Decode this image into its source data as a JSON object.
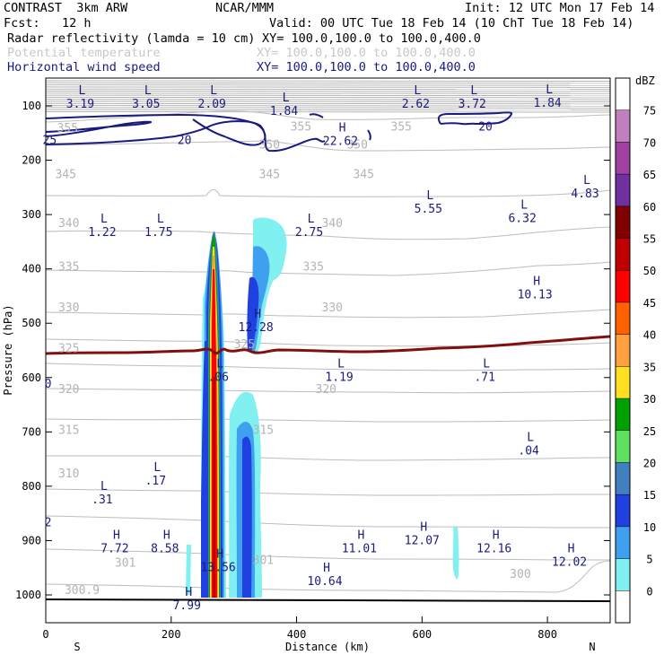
{
  "header": {
    "model": "CONTRAST  3km ARW",
    "center": "NCAR/MMM",
    "init": "Init: 12 UTC Mon 17 Feb 14",
    "fcst": "Fcst:   12 h",
    "valid": "Valid: 00 UTC Tue 18 Feb 14 (10 ChT Tue 18 Feb 14)",
    "fields": [
      {
        "label": "Radar reflectivity (lamda = 10 cm)",
        "xy": "XY= 100.0,100.0 to 100.0,400.0",
        "color": "#000000"
      },
      {
        "label": "Potential temperature",
        "xy": "XY= 100.0,100.0 to 100.0,400.0",
        "color": "#c8c8c8"
      },
      {
        "label": "Horizontal wind speed",
        "xy": "XY= 100.0,100.0 to 100.0,400.0",
        "color": "#1a1a80"
      }
    ]
  },
  "chart_data": {
    "type": "cross-section",
    "xlabel": "Distance (km)",
    "ylabel": "Pressure (hPa)",
    "x_ticks": [
      0,
      200,
      400,
      600,
      800
    ],
    "y_ticks": [
      100,
      200,
      300,
      400,
      500,
      600,
      700,
      800,
      900,
      1000
    ],
    "xlim": [
      0,
      900
    ],
    "ylim": [
      1045,
      50
    ],
    "left_end": "S",
    "right_end": "N",
    "colorbar": {
      "unit": "dBZ",
      "labels": [
        75,
        70,
        65,
        60,
        55,
        50,
        45,
        40,
        35,
        30,
        25,
        20,
        15,
        10,
        5,
        0
      ],
      "colors": [
        "#ffffff",
        "#c080c0",
        "#a040a0",
        "#7030a0",
        "#800000",
        "#c00000",
        "#ff0000",
        "#ff6000",
        "#ffa040",
        "#ffe020",
        "#00a000",
        "#60e060",
        "#4080c0",
        "#2040e0",
        "#40a0f0",
        "#80f0f0",
        "#ffffff"
      ]
    },
    "theta_labels": [
      {
        "x": 18,
        "p": 140,
        "text": "355"
      },
      {
        "x": 390,
        "p": 137,
        "text": "355"
      },
      {
        "x": 550,
        "p": 137,
        "text": "355"
      },
      {
        "x": 340,
        "p": 170,
        "text": "350"
      },
      {
        "x": 480,
        "p": 170,
        "text": "350"
      },
      {
        "x": 15,
        "p": 225,
        "text": "345"
      },
      {
        "x": 340,
        "p": 225,
        "text": "345"
      },
      {
        "x": 490,
        "p": 225,
        "text": "345"
      },
      {
        "x": 20,
        "p": 315,
        "text": "340"
      },
      {
        "x": 440,
        "p": 315,
        "text": "340"
      },
      {
        "x": 20,
        "p": 395,
        "text": "335"
      },
      {
        "x": 410,
        "p": 395,
        "text": "335"
      },
      {
        "x": 20,
        "p": 470,
        "text": "330"
      },
      {
        "x": 440,
        "p": 470,
        "text": "330"
      },
      {
        "x": 20,
        "p": 545,
        "text": "325"
      },
      {
        "x": 300,
        "p": 538,
        "text": "325"
      },
      {
        "x": 20,
        "p": 620,
        "text": "320"
      },
      {
        "x": 430,
        "p": 620,
        "text": "320"
      },
      {
        "x": 20,
        "p": 695,
        "text": "315"
      },
      {
        "x": 330,
        "p": 695,
        "text": "315"
      },
      {
        "x": 20,
        "p": 775,
        "text": "310"
      },
      {
        "x": 110,
        "p": 940,
        "text": "301"
      },
      {
        "x": 330,
        "p": 935,
        "text": "301"
      },
      {
        "x": 30,
        "p": 990,
        "text": "300.9"
      },
      {
        "x": 740,
        "p": 960,
        "text": "300"
      }
    ],
    "wind_labels": [
      {
        "x": -5,
        "p": 162,
        "text": "25"
      },
      {
        "x": 210,
        "p": 162,
        "text": "20"
      },
      {
        "x": 690,
        "p": 137,
        "text": "20"
      },
      {
        "x": -2,
        "p": 610,
        "text": "0"
      },
      {
        "x": -2,
        "p": 865,
        "text": "2"
      }
    ],
    "extrema": [
      {
        "x": 55,
        "p": 82,
        "type": "L",
        "value": "3.19"
      },
      {
        "x": 160,
        "p": 82,
        "type": "L",
        "value": "3.05"
      },
      {
        "x": 265,
        "p": 82,
        "type": "L",
        "value": "2.09"
      },
      {
        "x": 380,
        "p": 95,
        "type": "L",
        "value": "1.84"
      },
      {
        "x": 590,
        "p": 82,
        "type": "L",
        "value": "2.62"
      },
      {
        "x": 680,
        "p": 82,
        "type": "L",
        "value": "3.72"
      },
      {
        "x": 800,
        "p": 80,
        "type": "L",
        "value": "1.84"
      },
      {
        "x": 470,
        "p": 150,
        "type": "H",
        "value": "22.62"
      },
      {
        "x": 860,
        "p": 247,
        "type": "L",
        "value": "4.83"
      },
      {
        "x": 610,
        "p": 275,
        "type": "L",
        "value": "5.55"
      },
      {
        "x": 760,
        "p": 292,
        "type": "L",
        "value": "6.32"
      },
      {
        "x": 90,
        "p": 318,
        "type": "L",
        "value": "1.22"
      },
      {
        "x": 180,
        "p": 318,
        "type": "L",
        "value": "1.75"
      },
      {
        "x": 420,
        "p": 318,
        "type": "L",
        "value": "2.75"
      },
      {
        "x": 780,
        "p": 433,
        "type": "H",
        "value": "10.13"
      },
      {
        "x": 335,
        "p": 493,
        "type": "H",
        "value": "12.28"
      },
      {
        "x": 275,
        "p": 585,
        "type": "L",
        "value": ".06"
      },
      {
        "x": 468,
        "p": 585,
        "type": "L",
        "value": "1.19"
      },
      {
        "x": 700,
        "p": 585,
        "type": "L",
        "value": ".71"
      },
      {
        "x": 770,
        "p": 720,
        "type": "L",
        "value": ".04"
      },
      {
        "x": 175,
        "p": 775,
        "type": "L",
        "value": ".17"
      },
      {
        "x": 90,
        "p": 810,
        "type": "L",
        "value": ".31"
      },
      {
        "x": 600,
        "p": 885,
        "type": "H",
        "value": "12.07"
      },
      {
        "x": 500,
        "p": 900,
        "type": "H",
        "value": "11.01"
      },
      {
        "x": 715,
        "p": 900,
        "type": "H",
        "value": "12.16"
      },
      {
        "x": 110,
        "p": 900,
        "type": "H",
        "value": "7.72"
      },
      {
        "x": 190,
        "p": 900,
        "type": "H",
        "value": "8.58"
      },
      {
        "x": 835,
        "p": 925,
        "type": "H",
        "value": "12.02"
      },
      {
        "x": 275,
        "p": 935,
        "type": "H",
        "value": "13.56"
      },
      {
        "x": 445,
        "p": 960,
        "type": "H",
        "value": "10.64"
      },
      {
        "x": 225,
        "p": 1005,
        "type": "H",
        "value": "7.99"
      }
    ]
  }
}
